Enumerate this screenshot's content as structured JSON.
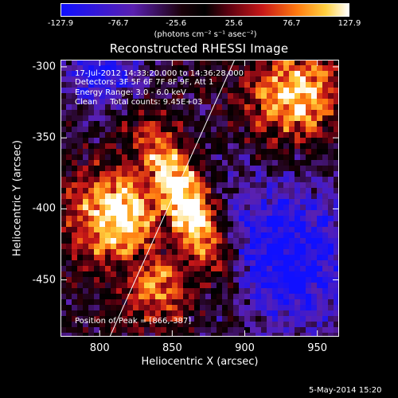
{
  "colorbar": {
    "ticks": [
      "-127.9",
      "-76.7",
      "-25.6",
      "25.6",
      "76.7",
      "127.9"
    ],
    "tick_values": [
      -127.9,
      -76.7,
      -25.6,
      25.6,
      76.7,
      127.9
    ],
    "units": "(photons cm⁻² s⁻¹ asec⁻²)"
  },
  "title": "Reconstructed RHESSI Image",
  "annotations": {
    "time": "17-Jul-2012 14:33:20.000 to 14:36:28.000",
    "detectors": "Detectors: 3F 5F 6F 7F 8F 9F, Att 1",
    "energy": "Energy Range: 3.0 - 6.0 keV",
    "clean": "Clean     Total counts: 9.45E+03",
    "peak": "Position of Peak = [866,-387]"
  },
  "axes": {
    "xlabel": "Heliocentric X (arcsec)",
    "ylabel": "Heliocentric Y (arcsec)",
    "xticks": [
      "800",
      "850",
      "900",
      "950"
    ],
    "yticks": [
      "-300",
      "-350",
      "-400",
      "-450"
    ]
  },
  "footer": {
    "timestamp": "5-May-2014 15:20"
  },
  "chart_data": {
    "type": "heatmap",
    "title": "Reconstructed RHESSI Image",
    "xlabel": "Heliocentric X (arcsec)",
    "ylabel": "Heliocentric Y (arcsec)",
    "xlim": [
      773,
      965
    ],
    "ylim": [
      -490,
      -295
    ],
    "xticks": [
      800,
      850,
      900,
      950
    ],
    "yticks": [
      -300,
      -350,
      -400,
      -450
    ],
    "color_range": [
      -127.9,
      127.9
    ],
    "colormap": "blue-black-red-yellow-white",
    "peak": [
      866,
      -387
    ],
    "limb_line": {
      "x": [
        807,
        893
      ],
      "y": [
        -490,
        -295
      ]
    },
    "grid": "off",
    "background": "#000000"
  }
}
